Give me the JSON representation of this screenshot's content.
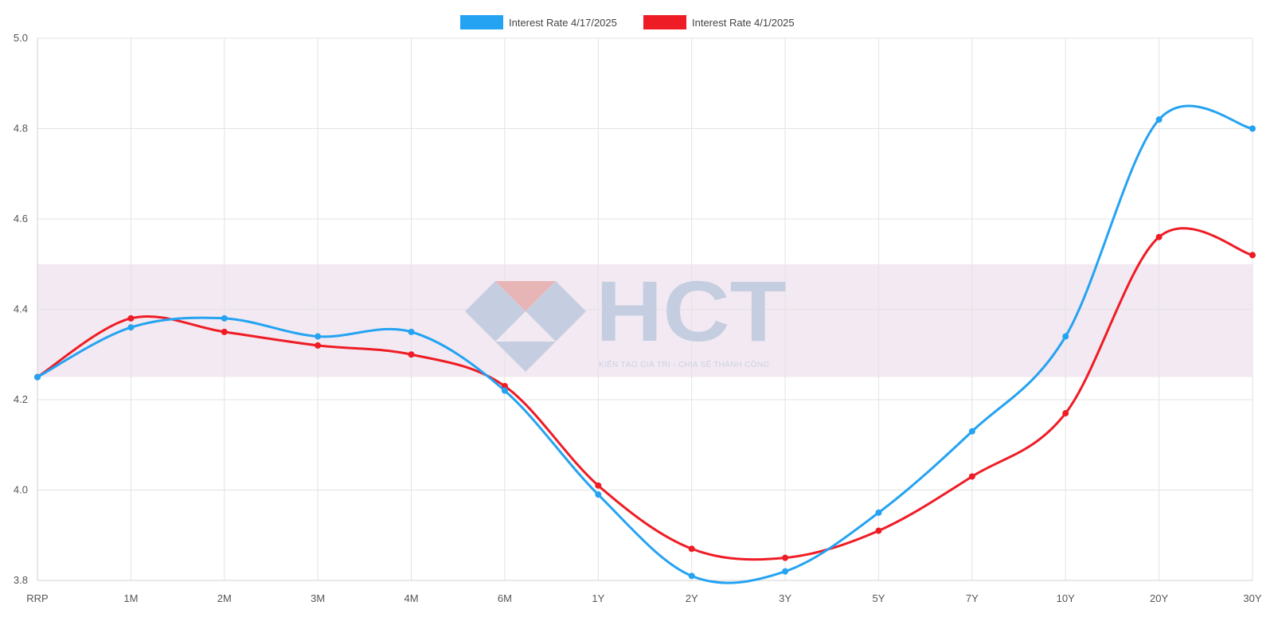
{
  "chart_data": {
    "type": "line",
    "title": "",
    "xlabel": "",
    "ylabel": "",
    "categories": [
      "RRP",
      "1M",
      "2M",
      "3M",
      "4M",
      "6M",
      "1Y",
      "2Y",
      "3Y",
      "5Y",
      "7Y",
      "10Y",
      "20Y",
      "30Y"
    ],
    "ylim": [
      3.8,
      5.0
    ],
    "yticks": [
      "3.8",
      "4.0",
      "4.2",
      "4.4",
      "4.6",
      "4.8",
      "5.0"
    ],
    "grid": true,
    "legend_position": "top-center",
    "highlight_band": {
      "from": 4.25,
      "to": 4.5,
      "color": "#f3e9f2"
    },
    "series": [
      {
        "name": "Interest Rate 4/17/2025",
        "color": "#24a3f2",
        "values": [
          4.25,
          4.36,
          4.38,
          4.34,
          4.35,
          4.22,
          3.99,
          3.81,
          3.82,
          3.95,
          4.13,
          4.34,
          4.82,
          4.8
        ]
      },
      {
        "name": "Interest Rate 4/1/2025",
        "color": "#ee1c25",
        "values": [
          4.25,
          4.38,
          4.35,
          4.32,
          4.3,
          4.23,
          4.01,
          3.87,
          3.85,
          3.91,
          4.03,
          4.17,
          4.56,
          4.52
        ]
      }
    ]
  },
  "watermark": {
    "logo_text": "HCT",
    "tagline": "KIẾN TẠO GIÁ TRỊ - CHIA SẺ THÀNH CÔNG",
    "logo_colors": {
      "blue": "#c3cde0",
      "red": "#e8b3b3"
    }
  }
}
